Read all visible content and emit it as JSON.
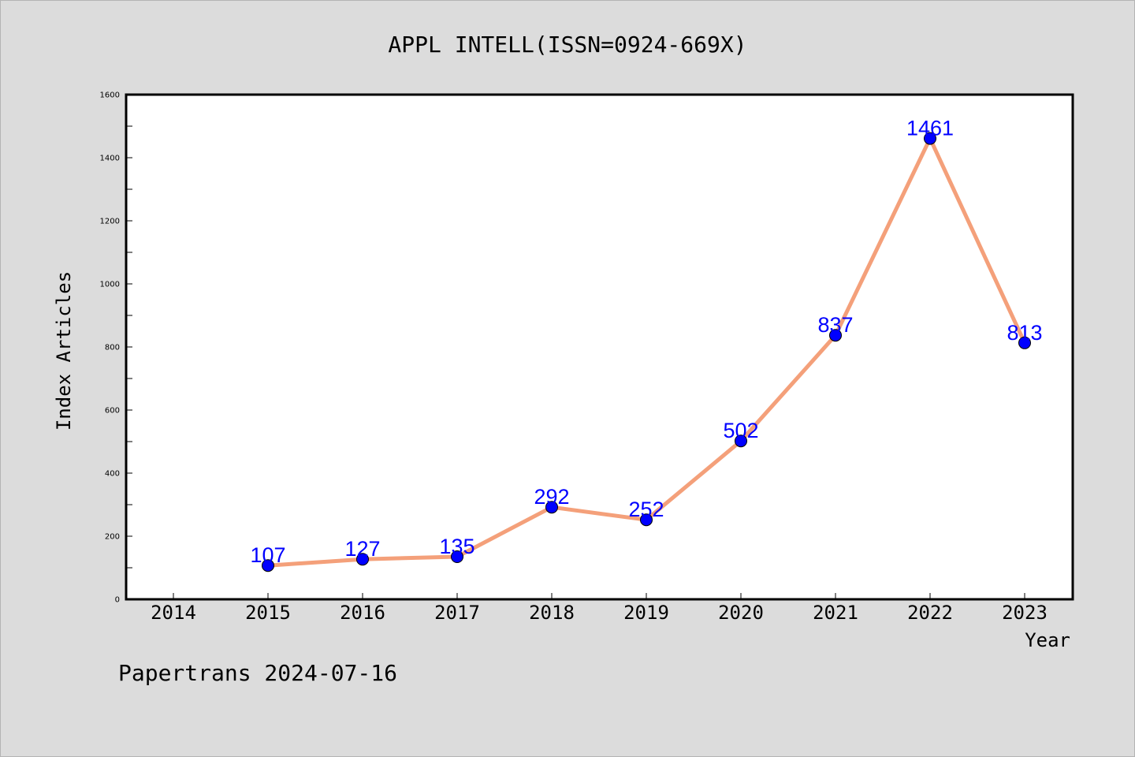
{
  "chart_data": {
    "type": "line",
    "title": "APPL INTELL(ISSN=0924-669X)",
    "xlabel": "Year",
    "ylabel": "Index Articles",
    "x_ticks": [
      "2014",
      "2015",
      "2016",
      "2017",
      "2018",
      "2019",
      "2020",
      "2021",
      "2022",
      "2023"
    ],
    "y_ticks": [
      "0",
      "200",
      "400",
      "600",
      "800",
      "1000",
      "1200",
      "1400",
      "1600"
    ],
    "ylim": [
      0,
      1600
    ],
    "grid": false,
    "series": [
      {
        "x": [
          "2015",
          "2016",
          "2017",
          "2018",
          "2019",
          "2020",
          "2021",
          "2022",
          "2023"
        ],
        "values": [
          107,
          127,
          135,
          292,
          252,
          502,
          837,
          1461,
          813
        ],
        "data_labels": [
          "107",
          "127",
          "135",
          "292",
          "252",
          "502",
          "837",
          "1461",
          "813"
        ]
      }
    ],
    "colors": {
      "line": "#f4a07a",
      "marker": "#0000ff",
      "label": "#0000ff",
      "background": "#dcdcdc",
      "plot_area": "#ffffff"
    }
  },
  "footer": "Papertrans 2024-07-16"
}
